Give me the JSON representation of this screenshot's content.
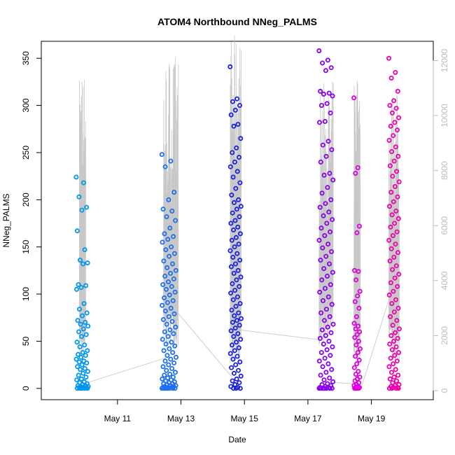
{
  "chart_data": {
    "type": "scatter",
    "title": "ATOM4 Northbound NNeg_PALMS",
    "xlabel": "Date",
    "ylabel": "NNeg_PALMS",
    "x_ticks": [
      "May 11",
      "May 13",
      "May 15",
      "May 17",
      "May 19"
    ],
    "x_tick_days": [
      11,
      13,
      15,
      17,
      19
    ],
    "xlim_days": [
      8.6,
      20.95
    ],
    "ylim": [
      -12,
      368
    ],
    "y_ticks": [
      0,
      50,
      100,
      150,
      200,
      250,
      300,
      350
    ],
    "y2_ticks": [
      0,
      2000,
      4000,
      6000,
      8000,
      10000,
      12000
    ],
    "y2lim": [
      -330,
      12700
    ],
    "y2_color": "#bdbdbd",
    "grid": false,
    "series": [
      {
        "color": "#0096ee",
        "day_range": [
          9.7,
          10.08
        ],
        "values": [
          224,
          218,
          203,
          192,
          189,
          167,
          147,
          136,
          133,
          132,
          110,
          109,
          107,
          105,
          90,
          84,
          80,
          77,
          72,
          70,
          68,
          66,
          63,
          60,
          57,
          55,
          49,
          46,
          44,
          40,
          38,
          36,
          35,
          33,
          31,
          29,
          28,
          27,
          25,
          23,
          21,
          20,
          18,
          16,
          14,
          12,
          10,
          9,
          7,
          6,
          5,
          4,
          3,
          3,
          2,
          2,
          1,
          1,
          1,
          0,
          0,
          0,
          0,
          0
        ]
      },
      {
        "color": "#1d6ff0",
        "day_range": [
          12.4,
          12.85
        ],
        "values": [
          248,
          241,
          235,
          208,
          200,
          190,
          188,
          182,
          178,
          170,
          164,
          161,
          158,
          155,
          150,
          147,
          143,
          140,
          135,
          132,
          128,
          125,
          122,
          119,
          116,
          113,
          110,
          108,
          105,
          102,
          99,
          96,
          93,
          91,
          88,
          85,
          82,
          79,
          76,
          73,
          71,
          68,
          65,
          62,
          60,
          58,
          55,
          52,
          49,
          47,
          45,
          42,
          40,
          38,
          35,
          33,
          31,
          29,
          27,
          25,
          23,
          21,
          19,
          17,
          15,
          14,
          12,
          11,
          10,
          9,
          8,
          7,
          6,
          5,
          5,
          4,
          3,
          3,
          2,
          2,
          1,
          1,
          1,
          0,
          0,
          0,
          0,
          0,
          0,
          0
        ]
      },
      {
        "color": "#1a22e0",
        "day_range": [
          14.55,
          14.9
        ],
        "values": [
          341,
          307,
          304,
          300,
          295,
          290,
          280,
          278,
          265,
          255,
          250,
          245,
          240,
          235,
          230,
          224,
          218,
          212,
          205,
          200,
          197,
          193,
          190,
          186,
          182,
          178,
          175,
          171,
          168,
          164,
          160,
          157,
          153,
          150,
          146,
          143,
          139,
          136,
          132,
          129,
          125,
          122,
          118,
          115,
          111,
          108,
          104,
          101,
          97,
          94,
          90,
          87,
          83,
          80,
          77,
          74,
          72,
          70,
          67,
          64,
          61,
          58,
          55,
          52,
          49,
          46,
          43,
          40,
          37,
          34,
          31,
          28,
          25,
          22,
          19,
          16,
          13,
          10,
          8,
          6,
          4,
          2,
          1,
          0,
          0,
          0
        ]
      },
      {
        "color": "#8800ee",
        "day_range": [
          17.35,
          17.8
        ],
        "values": [
          358,
          348,
          345,
          340,
          337,
          315,
          313,
          312,
          310,
          302,
          300,
          292,
          283,
          282,
          262,
          258,
          253,
          246,
          240,
          228,
          226,
          221,
          213,
          207,
          200,
          196,
          192,
          187,
          183,
          179,
          175,
          170,
          166,
          162,
          157,
          153,
          149,
          145,
          140,
          136,
          132,
          127,
          123,
          119,
          115,
          110,
          106,
          102,
          97,
          93,
          89,
          84,
          80,
          76,
          72,
          68,
          65,
          62,
          59,
          56,
          53,
          50,
          47,
          44,
          41,
          38,
          35,
          32,
          29,
          26,
          23,
          20,
          17,
          14,
          11,
          9,
          7,
          5,
          4,
          3,
          2,
          1,
          1,
          0,
          0,
          0,
          0,
          0,
          0,
          0
        ]
      },
      {
        "color": "#dd00dd",
        "day_range": [
          18.45,
          18.65
        ],
        "values": [
          308,
          234,
          228,
          172,
          165,
          125,
          124,
          115,
          103,
          98,
          92,
          85,
          76,
          69,
          66,
          63,
          60,
          57,
          54,
          50,
          46,
          42,
          38,
          34,
          30,
          26,
          22,
          18,
          15,
          12,
          10,
          8,
          6,
          4,
          3,
          2,
          1,
          1,
          0,
          0,
          0,
          0
        ]
      },
      {
        "color": "#f000aa",
        "day_range": [
          19.55,
          19.88
        ],
        "values": [
          350,
          335,
          329,
          315,
          305,
          300,
          297,
          292,
          287,
          282,
          278,
          274,
          268,
          263,
          256,
          251,
          246,
          241,
          236,
          230,
          225,
          219,
          214,
          208,
          203,
          198,
          193,
          188,
          184,
          180,
          175,
          171,
          166,
          162,
          157,
          153,
          148,
          144,
          139,
          135,
          130,
          126,
          121,
          117,
          112,
          108,
          103,
          99,
          94,
          90,
          85,
          81,
          76,
          72,
          67,
          63,
          59,
          56,
          53,
          50,
          47,
          44,
          41,
          38,
          35,
          32,
          29,
          26,
          23,
          20,
          17,
          14,
          12,
          10,
          8,
          6,
          4,
          3,
          2,
          1,
          1,
          0,
          0,
          0,
          0
        ]
      }
    ],
    "secondary_line": {
      "color": "#c8c8c8",
      "bursts": [
        {
          "day_range": [
            9.8,
            10.0
          ],
          "peak": 11700,
          "base": 1200
        },
        {
          "day_range": [
            12.45,
            12.92
          ],
          "peak": 12300,
          "base": 1500
        },
        {
          "day_range": [
            14.55,
            14.9
          ],
          "peak": 12950,
          "base": 800
        },
        {
          "day_range": [
            17.35,
            17.8
          ],
          "peak": 11300,
          "base": 1600
        },
        {
          "day_range": [
            18.45,
            18.65
          ],
          "peak": 11700,
          "base": 900
        },
        {
          "day_range": [
            19.55,
            19.88
          ],
          "peak": 10900,
          "base": 1000
        }
      ],
      "connectors": [
        [
          10.08,
          300,
          12.55,
          1200
        ],
        [
          12.92,
          2800,
          14.6,
          500
        ],
        [
          14.9,
          2200,
          17.35,
          1850
        ],
        [
          17.8,
          300,
          18.45,
          250
        ],
        [
          18.65,
          0,
          19.55,
          3300
        ]
      ]
    }
  }
}
